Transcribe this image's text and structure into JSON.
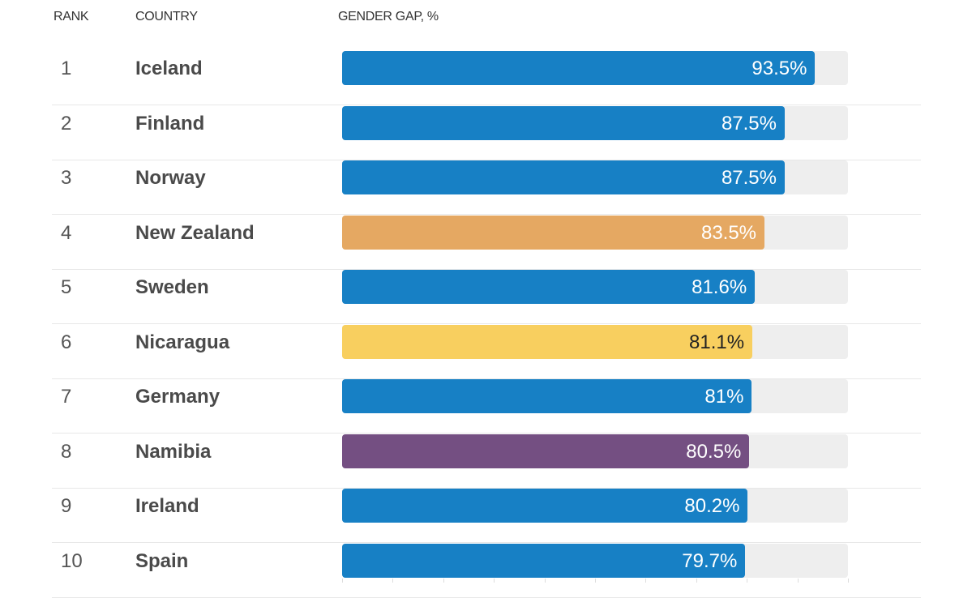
{
  "headers": {
    "rank": "RANK",
    "country": "COUNTRY",
    "value": "GENDER GAP, %"
  },
  "colors": {
    "blue": "#1780c5",
    "orange": "#e5a862",
    "yellow": "#f8cf5f",
    "purple": "#744f82",
    "track": "#eeeeee"
  },
  "chart_data": {
    "type": "bar",
    "orientation": "horizontal",
    "xlabel": "GENDER GAP, %",
    "xlim": [
      0,
      100
    ],
    "categories": [
      "Iceland",
      "Finland",
      "Norway",
      "New Zealand",
      "Sweden",
      "Nicaragua",
      "Germany",
      "Namibia",
      "Ireland",
      "Spain"
    ],
    "ranks": [
      "1",
      "2",
      "3",
      "4",
      "5",
      "6",
      "7",
      "8",
      "9",
      "10"
    ],
    "values": [
      93.5,
      87.5,
      87.5,
      83.5,
      81.6,
      81.1,
      81,
      80.5,
      80.2,
      79.7
    ],
    "labels": [
      "93.5%",
      "87.5%",
      "87.5%",
      "83.5%",
      "81.6%",
      "81.1%",
      "81%",
      "80.5%",
      "80.2%",
      "79.7%"
    ],
    "bar_colors": [
      "#1780c5",
      "#1780c5",
      "#1780c5",
      "#e5a862",
      "#1780c5",
      "#f8cf5f",
      "#1780c5",
      "#744f82",
      "#1780c5",
      "#1780c5"
    ],
    "label_colors": [
      "#ffffff",
      "#ffffff",
      "#ffffff",
      "#ffffff",
      "#ffffff",
      "#222222",
      "#ffffff",
      "#ffffff",
      "#ffffff",
      "#ffffff"
    ]
  }
}
